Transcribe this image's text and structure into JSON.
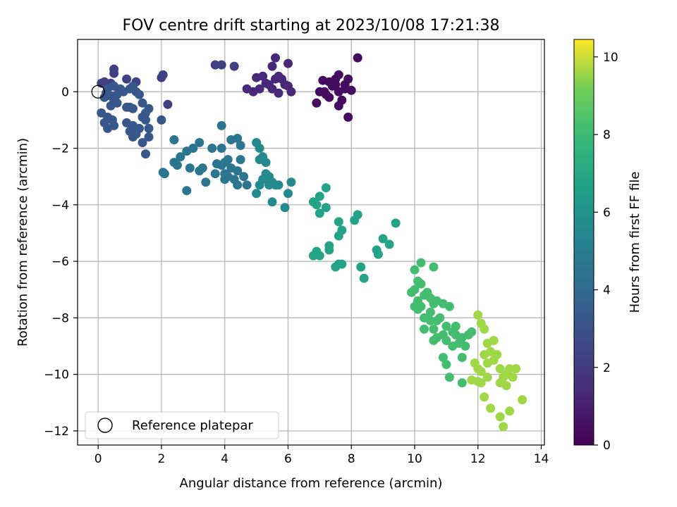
{
  "chart_data": {
    "type": "scatter",
    "title": "FOV centre drift starting at 2023/10/08 17:21:38",
    "xlabel": "Angular distance from reference (arcmin)",
    "ylabel": "Rotation from reference (arcmin)",
    "xlim": [
      -0.65,
      14.1
    ],
    "ylim": [
      -12.5,
      1.85
    ],
    "x_ticks": [
      0,
      2,
      4,
      6,
      8,
      10,
      12,
      14
    ],
    "x_tick_labels": [
      "0",
      "2",
      "4",
      "6",
      "8",
      "10",
      "12",
      "14"
    ],
    "y_ticks": [
      0,
      -2,
      -4,
      -6,
      -8,
      -10,
      -12
    ],
    "y_tick_labels": [
      "0",
      "−2",
      "−4",
      "−6",
      "−8",
      "−10",
      "−12"
    ],
    "grid": true,
    "legend": {
      "placement": "lower-left",
      "entries": [
        "Reference platepar"
      ]
    },
    "reference_point": {
      "x": 0,
      "y": 0,
      "label": "Reference platepar"
    },
    "colorbar": {
      "label": "Hours from first FF file",
      "colormap": "viridis",
      "range": [
        0,
        10.45
      ],
      "ticks": [
        0,
        2,
        4,
        6,
        8,
        10
      ],
      "tick_labels": [
        "0",
        "2",
        "4",
        "6",
        "8",
        "10"
      ]
    },
    "series": [
      {
        "color_value_hours": 0.4,
        "points": [
          [
            7.1,
            0.4
          ],
          [
            7.3,
            0.35
          ],
          [
            7.5,
            0.45
          ],
          [
            7.6,
            0.6
          ],
          [
            7.9,
            0.45
          ],
          [
            7.4,
            0.2
          ],
          [
            7.2,
            -0.1
          ],
          [
            7.0,
            0.0
          ],
          [
            6.9,
            -0.4
          ],
          [
            7.3,
            -0.2
          ],
          [
            7.6,
            0.0
          ],
          [
            7.8,
            0.1
          ],
          [
            8.0,
            0.05
          ],
          [
            7.7,
            -0.3
          ],
          [
            7.6,
            -0.5
          ],
          [
            7.9,
            -0.9
          ],
          [
            8.2,
            1.2
          ],
          [
            7.5,
            0.25
          ],
          [
            7.8,
            0.25
          ],
          [
            7.15,
            0.0
          ]
        ]
      },
      {
        "color_value_hours": 1.3,
        "points": [
          [
            5.0,
            0.5
          ],
          [
            5.2,
            0.55
          ],
          [
            5.6,
            0.45
          ],
          [
            5.7,
            0.55
          ],
          [
            5.5,
            0.9
          ],
          [
            5.6,
            1.2
          ],
          [
            6.0,
            1.0
          ],
          [
            5.4,
            0.25
          ],
          [
            5.9,
            0.25
          ],
          [
            5.1,
            0.1
          ],
          [
            4.9,
            0.0
          ],
          [
            4.7,
            0.1
          ],
          [
            5.5,
            0.1
          ],
          [
            5.7,
            -0.05
          ],
          [
            6.0,
            0.2
          ],
          [
            6.1,
            0.0
          ],
          [
            5.8,
            0.45
          ],
          [
            5.3,
            0.3
          ]
        ]
      },
      {
        "color_value_hours": 2.3,
        "points": [
          [
            3.7,
            0.95
          ],
          [
            3.9,
            0.95
          ],
          [
            4.3,
            0.9
          ],
          [
            2.0,
            0.5
          ],
          [
            2.05,
            0.6
          ],
          [
            2.2,
            -0.45
          ],
          [
            0.5,
            0.8
          ],
          [
            0.5,
            0.65
          ],
          [
            0.9,
            0.45
          ],
          [
            1.2,
            0.35
          ],
          [
            0.2,
            0.35
          ],
          [
            0.1,
            0.3
          ],
          [
            0.3,
            0.25
          ],
          [
            0.4,
            0.3
          ]
        ]
      },
      {
        "color_value_hours": 3.2,
        "points": [
          [
            0.3,
            0.1
          ],
          [
            0.5,
            0.2
          ],
          [
            0.7,
            0.1
          ],
          [
            0.8,
            0.0
          ],
          [
            1.0,
            0.1
          ],
          [
            1.1,
            0.2
          ],
          [
            1.2,
            0.0
          ],
          [
            1.3,
            -0.1
          ],
          [
            0.6,
            -0.1
          ],
          [
            0.4,
            -0.15
          ],
          [
            0.2,
            -0.2
          ],
          [
            0.5,
            -0.3
          ],
          [
            0.9,
            -0.55
          ],
          [
            1.0,
            -0.55
          ],
          [
            1.1,
            -0.6
          ],
          [
            1.4,
            -0.4
          ],
          [
            1.6,
            -0.6
          ],
          [
            1.5,
            -0.75
          ],
          [
            0.1,
            -0.75
          ],
          [
            0.3,
            -0.9
          ],
          [
            0.2,
            -1.1
          ],
          [
            0.45,
            -1.0
          ],
          [
            0.3,
            -1.3
          ],
          [
            0.5,
            -1.2
          ],
          [
            0.9,
            -1.1
          ],
          [
            1.1,
            -1.2
          ],
          [
            1.0,
            -1.4
          ],
          [
            1.2,
            -1.5
          ],
          [
            1.1,
            -1.6
          ],
          [
            1.3,
            -1.3
          ],
          [
            1.5,
            -1.0
          ],
          [
            1.6,
            -1.3
          ],
          [
            1.4,
            -1.8
          ],
          [
            1.6,
            -1.6
          ],
          [
            1.5,
            -2.2
          ],
          [
            2.0,
            -1.0
          ],
          [
            0.4,
            -0.5
          ],
          [
            0.6,
            -0.4
          ],
          [
            1.4,
            -0.9
          ],
          [
            0.25,
            -0.05
          ]
        ]
      },
      {
        "color_value_hours": 4.6,
        "points": [
          [
            2.1,
            -2.9
          ],
          [
            2.4,
            -1.7
          ],
          [
            2.6,
            -2.3
          ],
          [
            2.8,
            -2.1
          ],
          [
            3.0,
            -2.0
          ],
          [
            3.2,
            -1.8
          ],
          [
            2.4,
            -2.5
          ],
          [
            2.5,
            -2.6
          ],
          [
            2.9,
            -2.7
          ],
          [
            2.8,
            -3.5
          ],
          [
            3.2,
            -2.8
          ],
          [
            3.3,
            -2.7
          ],
          [
            3.4,
            -3.2
          ],
          [
            3.6,
            -2.0
          ],
          [
            3.7,
            -2.9
          ],
          [
            3.9,
            -2.6
          ],
          [
            4.0,
            -2.5
          ],
          [
            4.0,
            -2.9
          ],
          [
            4.1,
            -2.4
          ],
          [
            4.2,
            -2.7
          ],
          [
            4.1,
            -3.0
          ],
          [
            4.3,
            -3.1
          ],
          [
            4.0,
            -3.1
          ],
          [
            3.9,
            -1.2
          ],
          [
            3.9,
            -2.0
          ],
          [
            4.2,
            -1.7
          ],
          [
            4.4,
            -1.65
          ],
          [
            4.5,
            -1.9
          ],
          [
            4.4,
            -2.8
          ],
          [
            4.5,
            -2.4
          ],
          [
            4.6,
            -3.0
          ],
          [
            4.4,
            -3.3
          ],
          [
            4.7,
            -3.3
          ],
          [
            2.05,
            -2.85
          ],
          [
            3.75,
            -2.55
          ]
        ]
      },
      {
        "color_value_hours": 5.6,
        "points": [
          [
            5.0,
            -3.6
          ],
          [
            5.1,
            -3.3
          ],
          [
            5.2,
            -3.1
          ],
          [
            5.0,
            -1.8
          ],
          [
            5.1,
            -2.0
          ],
          [
            5.1,
            -2.4
          ],
          [
            5.2,
            -2.3
          ],
          [
            5.3,
            -2.5
          ],
          [
            5.3,
            -2.9
          ],
          [
            5.4,
            -3.0
          ],
          [
            5.5,
            -3.2
          ],
          [
            5.6,
            -3.3
          ],
          [
            5.4,
            -3.3
          ],
          [
            5.5,
            -3.9
          ],
          [
            5.9,
            -4.1
          ],
          [
            6.1,
            -3.2
          ],
          [
            6.0,
            -3.6
          ],
          [
            5.7,
            -3.3
          ]
        ]
      },
      {
        "color_value_hours": 6.8,
        "points": [
          [
            6.8,
            -3.9
          ],
          [
            6.9,
            -4.0
          ],
          [
            7.0,
            -3.7
          ],
          [
            7.2,
            -3.4
          ],
          [
            7.0,
            -4.3
          ],
          [
            7.2,
            -4.1
          ],
          [
            7.6,
            -4.6
          ],
          [
            7.7,
            -4.9
          ],
          [
            7.6,
            -5.1
          ],
          [
            7.5,
            -6.2
          ],
          [
            7.6,
            -6.1
          ],
          [
            7.7,
            -6.1
          ],
          [
            7.3,
            -5.6
          ],
          [
            7.3,
            -5.45
          ],
          [
            7.0,
            -5.8
          ],
          [
            6.9,
            -5.65
          ],
          [
            6.8,
            -5.8
          ],
          [
            8.1,
            -4.55
          ],
          [
            8.2,
            -4.35
          ],
          [
            8.3,
            -6.2
          ],
          [
            8.4,
            -6.6
          ],
          [
            8.8,
            -5.6
          ],
          [
            8.85,
            -5.75
          ],
          [
            9.0,
            -5.2
          ],
          [
            9.2,
            -5.4
          ],
          [
            9.4,
            -4.65
          ]
        ]
      },
      {
        "color_value_hours": 8.2,
        "points": [
          [
            10.0,
            -6.3
          ],
          [
            10.2,
            -6.05
          ],
          [
            10.6,
            -6.2
          ],
          [
            9.9,
            -7.1
          ],
          [
            10.0,
            -7.0
          ],
          [
            10.1,
            -6.7
          ],
          [
            10.2,
            -6.8
          ],
          [
            10.3,
            -7.2
          ],
          [
            10.1,
            -7.4
          ],
          [
            10.0,
            -7.6
          ],
          [
            10.2,
            -7.6
          ],
          [
            10.4,
            -7.1
          ],
          [
            10.5,
            -7.3
          ],
          [
            10.6,
            -7.5
          ],
          [
            10.7,
            -7.4
          ],
          [
            10.5,
            -7.8
          ],
          [
            10.5,
            -8.1
          ],
          [
            10.6,
            -8.4
          ],
          [
            10.3,
            -8.4
          ],
          [
            10.7,
            -8.1
          ],
          [
            10.8,
            -8.0
          ],
          [
            10.9,
            -7.5
          ],
          [
            11.1,
            -7.6
          ],
          [
            11.0,
            -8.3
          ],
          [
            10.9,
            -8.6
          ],
          [
            11.0,
            -8.8
          ],
          [
            11.2,
            -8.5
          ],
          [
            11.3,
            -8.3
          ],
          [
            11.2,
            -9.0
          ],
          [
            11.4,
            -8.9
          ],
          [
            11.3,
            -8.6
          ],
          [
            11.5,
            -8.7
          ],
          [
            11.7,
            -8.6
          ],
          [
            11.8,
            -8.5
          ],
          [
            11.6,
            -9.0
          ],
          [
            11.5,
            -9.4
          ],
          [
            11.1,
            -10.1
          ],
          [
            11.5,
            -10.3
          ],
          [
            10.9,
            -9.4
          ],
          [
            11.0,
            -9.65
          ],
          [
            10.7,
            -8.7
          ],
          [
            10.6,
            -8.8
          ],
          [
            10.3,
            -8.0
          ],
          [
            10.1,
            -7.7
          ]
        ]
      },
      {
        "color_value_hours": 9.6,
        "points": [
          [
            12.0,
            -7.9
          ],
          [
            12.1,
            -8.2
          ],
          [
            12.2,
            -8.4
          ],
          [
            12.3,
            -8.9
          ],
          [
            12.2,
            -9.3
          ],
          [
            12.3,
            -9.6
          ],
          [
            12.4,
            -9.2
          ],
          [
            12.5,
            -9.5
          ],
          [
            12.6,
            -9.3
          ],
          [
            12.5,
            -8.8
          ],
          [
            12.0,
            -9.8
          ],
          [
            12.1,
            -9.9
          ],
          [
            12.3,
            -10.1
          ],
          [
            12.1,
            -10.3
          ],
          [
            12.2,
            -10.8
          ],
          [
            12.4,
            -11.2
          ],
          [
            12.7,
            -10.3
          ],
          [
            12.8,
            -10.1
          ],
          [
            12.9,
            -10.0
          ],
          [
            13.0,
            -9.8
          ],
          [
            12.7,
            -9.8
          ],
          [
            12.9,
            -10.4
          ],
          [
            13.1,
            -10.1
          ],
          [
            13.2,
            -9.8
          ],
          [
            13.4,
            -10.9
          ],
          [
            13.0,
            -11.3
          ],
          [
            12.7,
            -11.5
          ],
          [
            12.8,
            -11.85
          ],
          [
            11.9,
            -9.6
          ],
          [
            11.8,
            -10.2
          ],
          [
            12.0,
            -10.25
          ]
        ]
      }
    ]
  }
}
